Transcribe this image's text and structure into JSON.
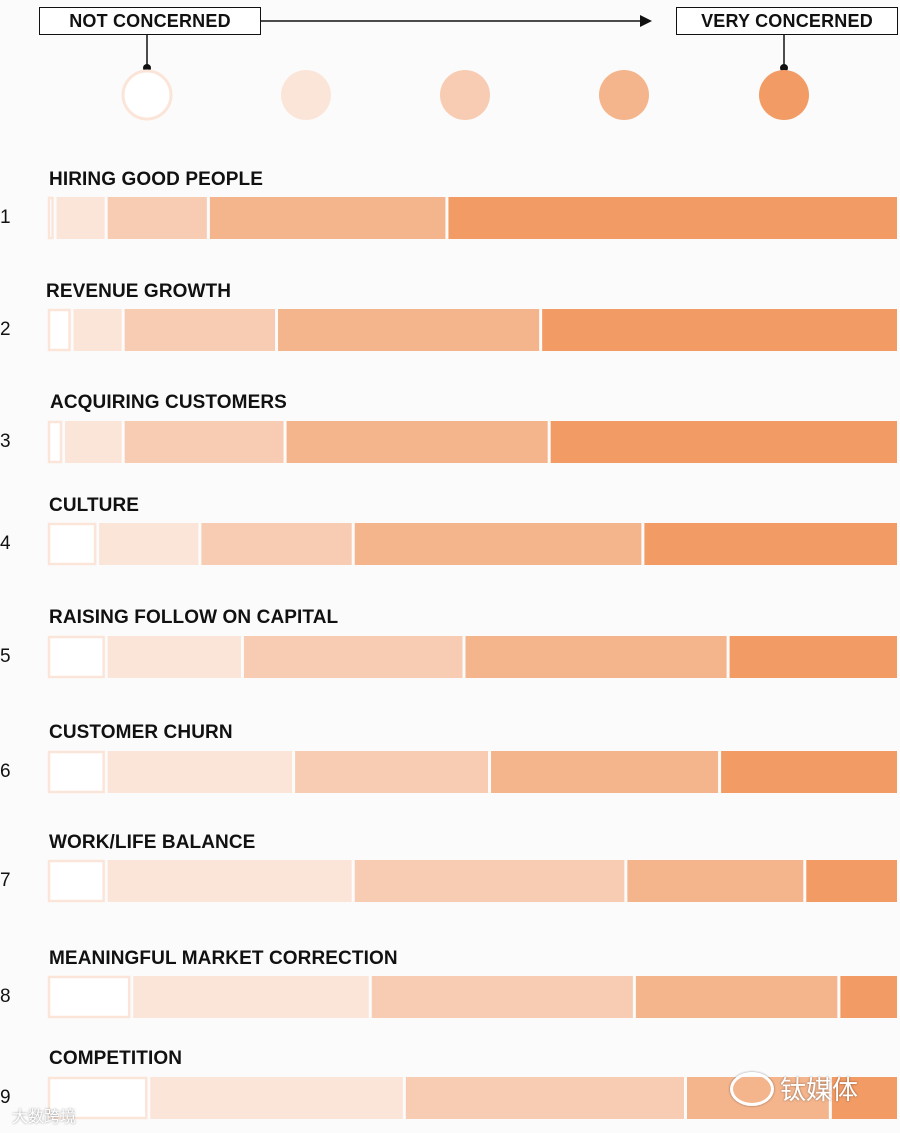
{
  "scale": {
    "low_label": "NOT CONCERNED",
    "high_label": "VERY CONCERNED",
    "levels": [
      "#ffffff",
      "#fbe5d9",
      "#f8ccb3",
      "#f4b58d",
      "#f29b64"
    ]
  },
  "chart_data": {
    "type": "bar",
    "stacked": true,
    "normalized": true,
    "unit": "percent of respondents",
    "levels": [
      "level-1",
      "level-2",
      "level-3",
      "level-4",
      "level-5"
    ],
    "categories": [
      "HIRING GOOD PEOPLE",
      "REVENUE GROWTH",
      "ACQUIRING CUSTOMERS",
      "CULTURE",
      "RAISING FOLLOW ON CAPITAL",
      "CUSTOMER CHURN",
      "WORK/LIFE BALANCE",
      "MEANINGFUL MARKET CORRECTION",
      "COMPETITION"
    ],
    "ranks": [
      "1",
      "2",
      "3",
      "4",
      "5",
      "6",
      "7",
      "8",
      "9"
    ],
    "series": [
      {
        "values": [
          1,
          3,
          2,
          6,
          7,
          7,
          7,
          10,
          12
        ]
      },
      {
        "values": [
          6,
          6,
          7,
          12,
          16,
          22,
          29,
          28,
          30
        ]
      },
      {
        "values": [
          12,
          18,
          19,
          18,
          26,
          23,
          32,
          31,
          33
        ]
      },
      {
        "values": [
          28,
          31,
          31,
          34,
          31,
          27,
          21,
          24,
          17
        ]
      },
      {
        "values": [
          53,
          42,
          41,
          30,
          20,
          21,
          11,
          7,
          8
        ]
      }
    ]
  },
  "watermarks": {
    "left": "大数跨境",
    "right": "钛媒体"
  }
}
